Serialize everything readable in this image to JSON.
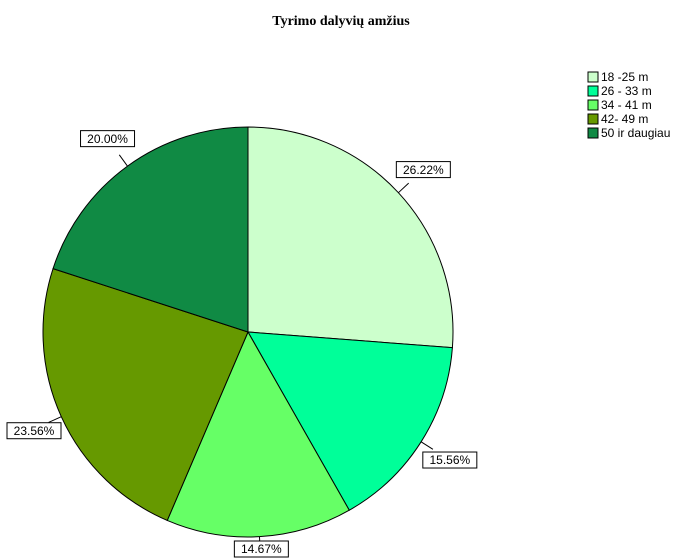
{
  "chart_data": {
    "type": "pie",
    "title": "Tyrimo dalyvių amžius",
    "categories": [
      "18 -25 m",
      "26 - 33 m",
      "34 - 41 m",
      "42- 49 m",
      "50 ir daugiau"
    ],
    "values": [
      26.22,
      15.56,
      14.67,
      23.56,
      20.0
    ],
    "value_labels": [
      "26.22%",
      "15.56%",
      "14.67%",
      "23.56%",
      "20.00%"
    ],
    "colors": [
      "#ccffcc",
      "#00ff99",
      "#66ff66",
      "#669900",
      "#108a44"
    ],
    "legend": "top-right"
  }
}
